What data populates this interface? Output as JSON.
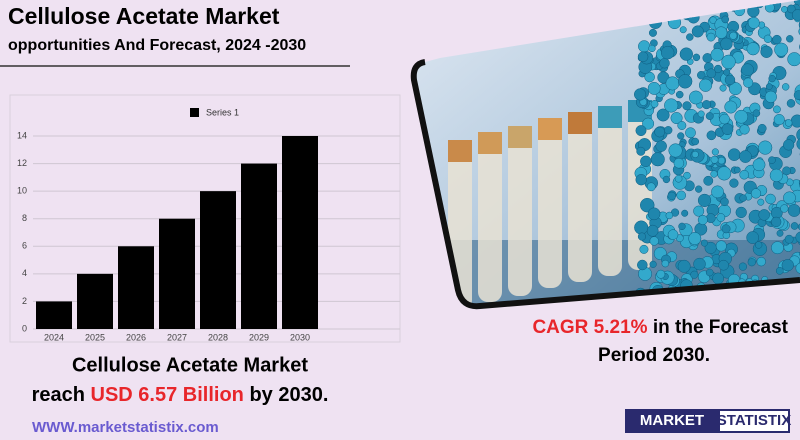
{
  "chart_data": {
    "type": "bar",
    "title": "Cellulose Acetate Market",
    "subtitle": "opportunities And Forecast, 2024 -2030",
    "categories": [
      "2024",
      "2025",
      "2026",
      "2027",
      "2028",
      "2029",
      "2030"
    ],
    "series": [
      {
        "name": "Series 1",
        "color": "#000000",
        "values": [
          2,
          4,
          6,
          8,
          10,
          12,
          14
        ]
      }
    ],
    "ylim": [
      0,
      14
    ],
    "yticks": [
      0,
      2,
      4,
      6,
      8,
      10,
      12,
      14
    ],
    "grid": true
  },
  "headline": {
    "line1": "Cellulose Acetate Market",
    "reach": "reach",
    "amount": "USD 6.57 Billion",
    "by": "by 2030."
  },
  "cagr": {
    "label": "CAGR  5.21%",
    "rest": "in the  Forecast",
    "line2": "Period  2030."
  },
  "website": "WWW.marketstatistix.com",
  "logo": {
    "left": "MARKET",
    "right": "STATISTIX"
  }
}
